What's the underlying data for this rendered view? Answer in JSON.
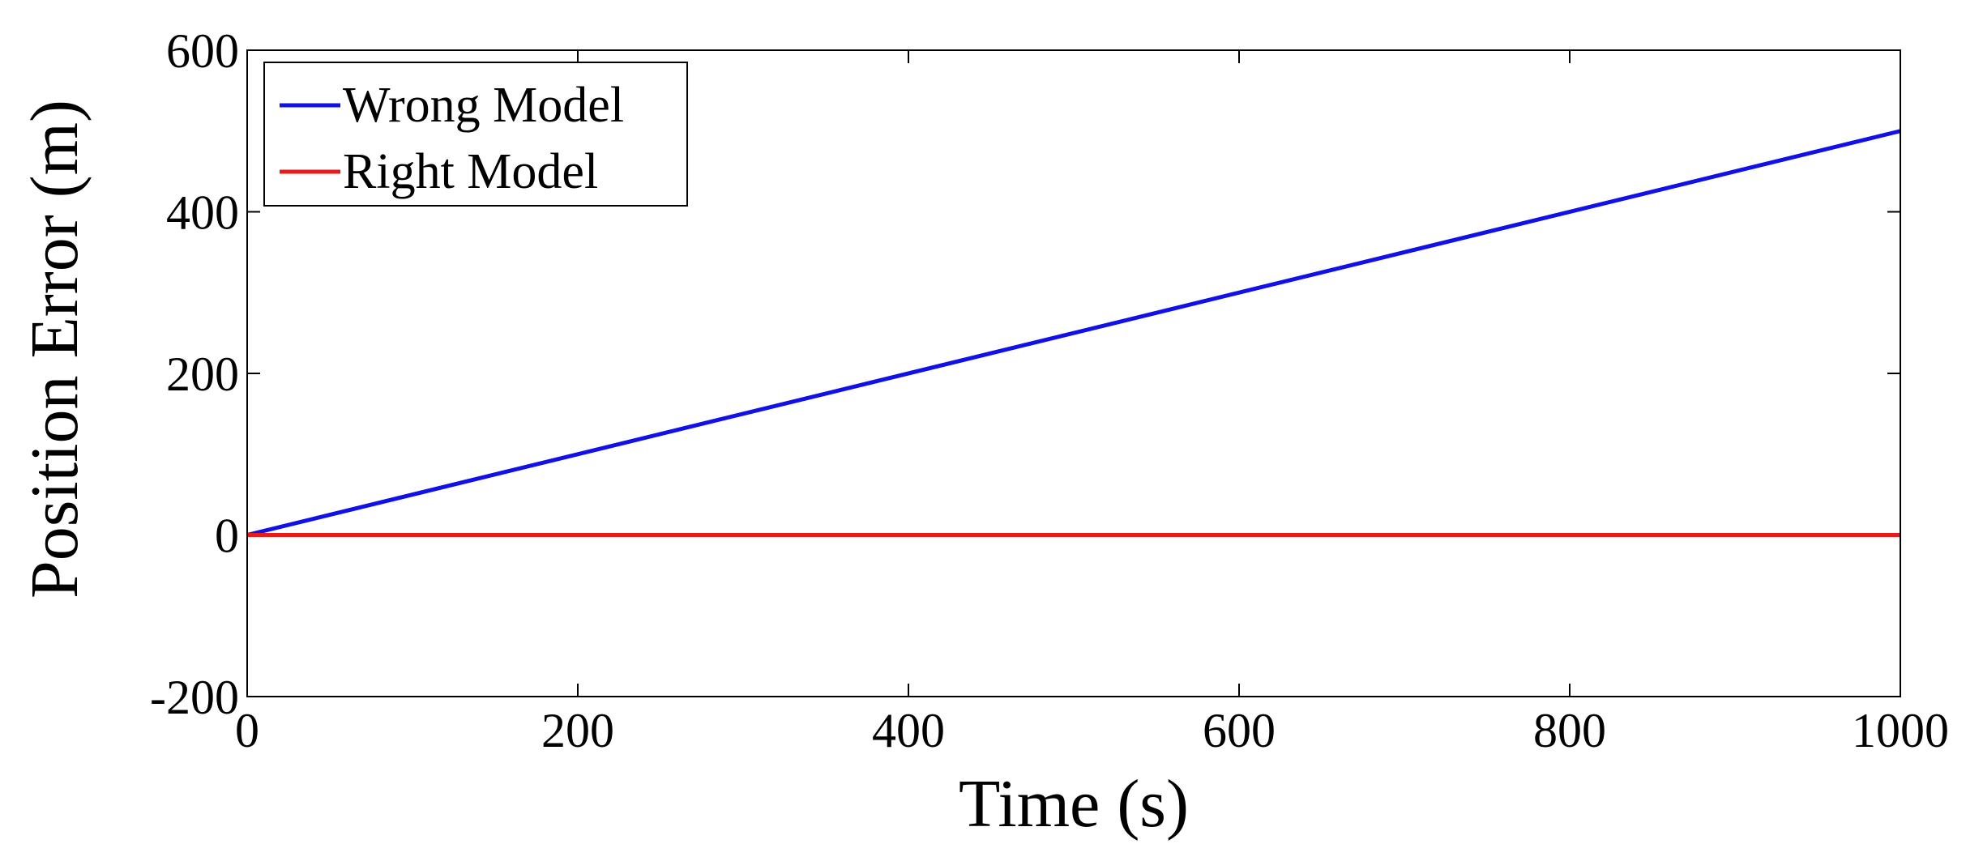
{
  "chart_data": {
    "type": "line",
    "title": "",
    "xlabel": "Time (s)",
    "ylabel": "Position Error (m)",
    "xlim": [
      0,
      1000
    ],
    "ylim": [
      -200,
      600
    ],
    "x_ticks": [
      0,
      200,
      400,
      600,
      800,
      1000
    ],
    "y_ticks": [
      -200,
      0,
      200,
      400,
      600
    ],
    "x_tick_labels": [
      "0",
      "200",
      "400",
      "600",
      "800",
      "1000"
    ],
    "y_tick_labels": [
      "-200",
      "0",
      "200",
      "400",
      "600"
    ],
    "grid": false,
    "legend_position": "top-left",
    "series": [
      {
        "name": "Wrong Model",
        "color": "#1010e8",
        "x": [
          0,
          1000
        ],
        "y": [
          0,
          500
        ]
      },
      {
        "name": "Right Model",
        "color": "#e81a1a",
        "x": [
          0,
          1000
        ],
        "y": [
          0,
          0
        ]
      }
    ]
  }
}
